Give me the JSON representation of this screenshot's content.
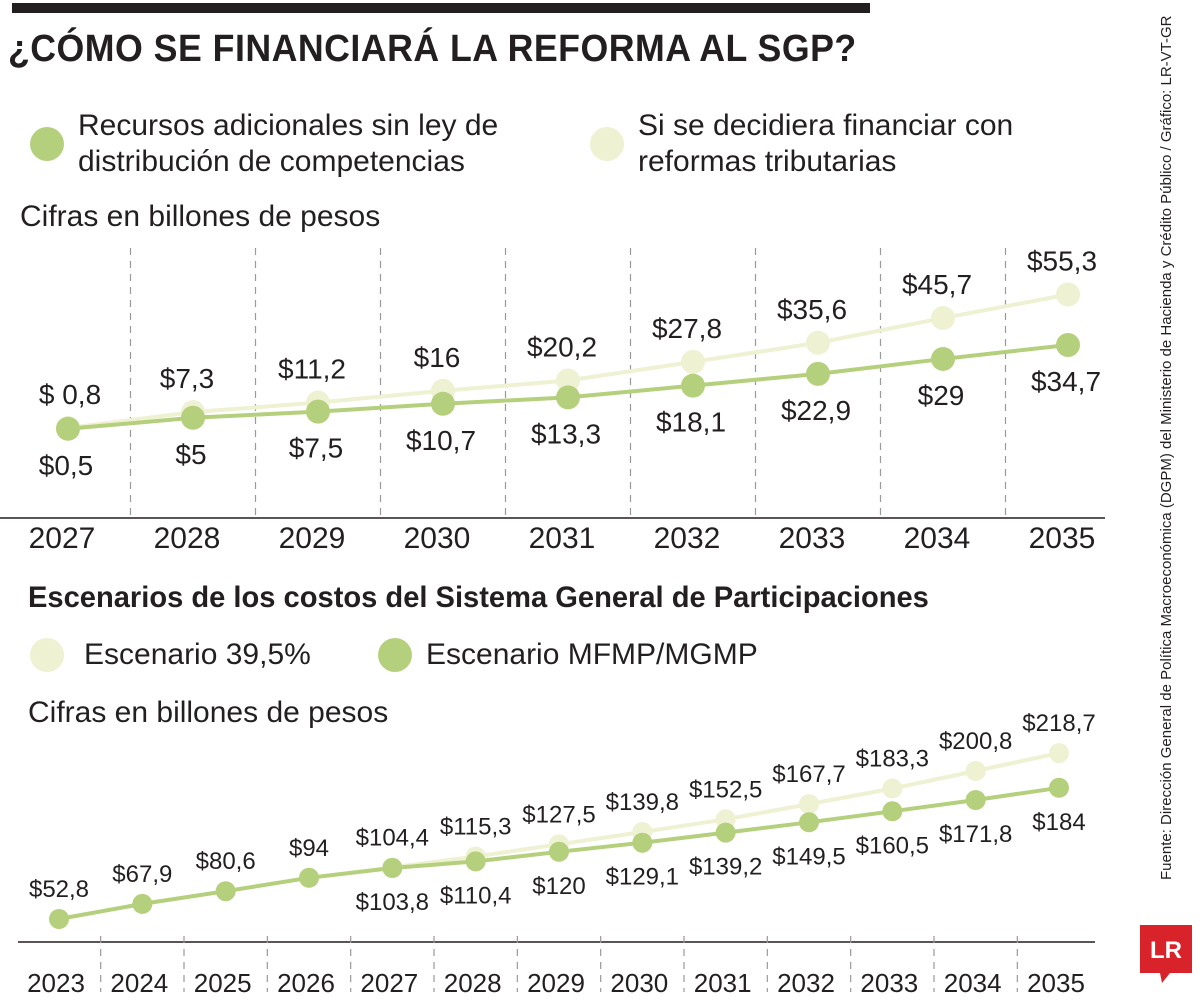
{
  "headline": "¿CÓMO SE FINANCIARÁ LA REFORMA AL SGP?",
  "source": "Fuente: Dirección General de Política Macroeconómica (DGPM) del Ministerio de Hacienda y Crédito Público / Gráfico: LR-VT-GR",
  "logo_text": "LR",
  "colors": {
    "dark_green": "#b5d07d",
    "light_green": "#eef1d2",
    "text": "#231f20",
    "grid": "#9a9a9a",
    "logo_red": "#d8232a"
  },
  "chart_data": [
    {
      "type": "line",
      "title": "",
      "subtitle": "Cifras en billones de pesos",
      "xlabel": "",
      "ylabel": "",
      "categories": [
        "2027",
        "2028",
        "2029",
        "2030",
        "2031",
        "2032",
        "2033",
        "2034",
        "2035"
      ],
      "ylim": [
        0,
        60
      ],
      "series": [
        {
          "name": "Si se decidiera financiar con reformas tributarias",
          "color": "#eef1d2",
          "values": [
            0.8,
            7.3,
            11.2,
            16,
            20.2,
            27.8,
            35.6,
            45.7,
            55.3
          ],
          "labels": [
            "$ 0,8",
            "$7,3",
            "$11,2",
            "$16",
            "$20,2",
            "$27,8",
            "$35,6",
            "$45,7",
            "$55,3"
          ]
        },
        {
          "name": "Recursos adicionales sin ley de distribución de competencias",
          "color": "#b5d07d",
          "values": [
            0.5,
            5,
            7.5,
            10.7,
            13.3,
            18.1,
            22.9,
            29,
            34.7
          ],
          "labels": [
            "$0,5",
            "$5",
            "$7,5",
            "$10,7",
            "$13,3",
            "$18,1",
            "$22,9",
            "$29",
            "$34,7"
          ]
        }
      ]
    },
    {
      "type": "line",
      "title": "Escenarios de los costos del Sistema General de Participaciones",
      "subtitle": "Cifras en billones de pesos",
      "xlabel": "",
      "ylabel": "",
      "categories": [
        "2023",
        "2024",
        "2025",
        "2026",
        "2027",
        "2028",
        "2029",
        "2030",
        "2031",
        "2032",
        "2033",
        "2034",
        "2035"
      ],
      "ylim": [
        0,
        240
      ],
      "series": [
        {
          "name": "Escenario 39,5%",
          "color": "#eef1d2",
          "values": [
            52.8,
            67.9,
            80.6,
            94,
            104.4,
            115.3,
            127.5,
            139.8,
            152.5,
            167.7,
            183.3,
            200.8,
            218.7
          ],
          "labels": [
            "$52,8",
            "$67,9",
            "$80,6",
            "$94",
            "$104,4",
            "$115,3",
            "$127,5",
            "$139,8",
            "$152,5",
            "$167,7",
            "$183,3",
            "$200,8",
            "$218,7"
          ]
        },
        {
          "name": "Escenario MFMP/MGMP",
          "color": "#b5d07d",
          "values": [
            52.8,
            67.9,
            80.6,
            94,
            103.8,
            110.4,
            120,
            129.1,
            139.2,
            149.5,
            160.5,
            171.8,
            184
          ],
          "labels": [
            "",
            "",
            "",
            "",
            "$103,8",
            "$110,4",
            "$120",
            "$129,1",
            "$139,2",
            "$149,5",
            "$160,5",
            "$171,8",
            "$184"
          ]
        }
      ]
    }
  ]
}
